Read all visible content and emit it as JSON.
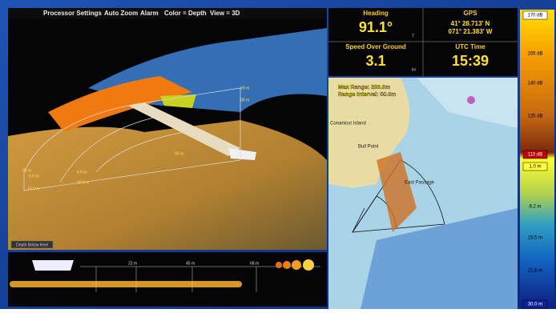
{
  "toolbar": {
    "items": [
      "Processor Settings",
      "Auto Zoom",
      "Alarm",
      "Color = Depth",
      "View = 3D"
    ]
  },
  "instruments": [
    {
      "label": "Heading",
      "value": "91.1°",
      "unit": "T"
    },
    {
      "label": "GPS",
      "lines": [
        "41° 28.713' N",
        "071° 21.383' W"
      ]
    },
    {
      "label": "Speed Over Ground",
      "value": "3.1",
      "unit": "kn"
    },
    {
      "label": "UTC Time",
      "value": "15:39"
    }
  ],
  "view3d": {
    "labels": [
      "90 m",
      "6.0 m",
      "10.0 m",
      "6.0 m",
      "10.0 m",
      "30 m",
      "60 m",
      "90 m"
    ],
    "button": "Depth Below Keel"
  },
  "map": {
    "range": "Max Range: 200.0m",
    "interval": "Range Interval: 50.0m",
    "places": [
      "Conanicut Island",
      "Bull Point",
      "East Passage"
    ]
  },
  "strip": {
    "ticks": [
      "22 m",
      "45 m",
      "68 m"
    ]
  },
  "color_scale": {
    "db": [
      "170 dB",
      "155 dB",
      "140 dB",
      "125 dB",
      "110 dB"
    ],
    "depth": [
      "1.0 m",
      "8.2 m",
      "15.5 m",
      "22.8 m",
      "30.0 m"
    ]
  }
}
